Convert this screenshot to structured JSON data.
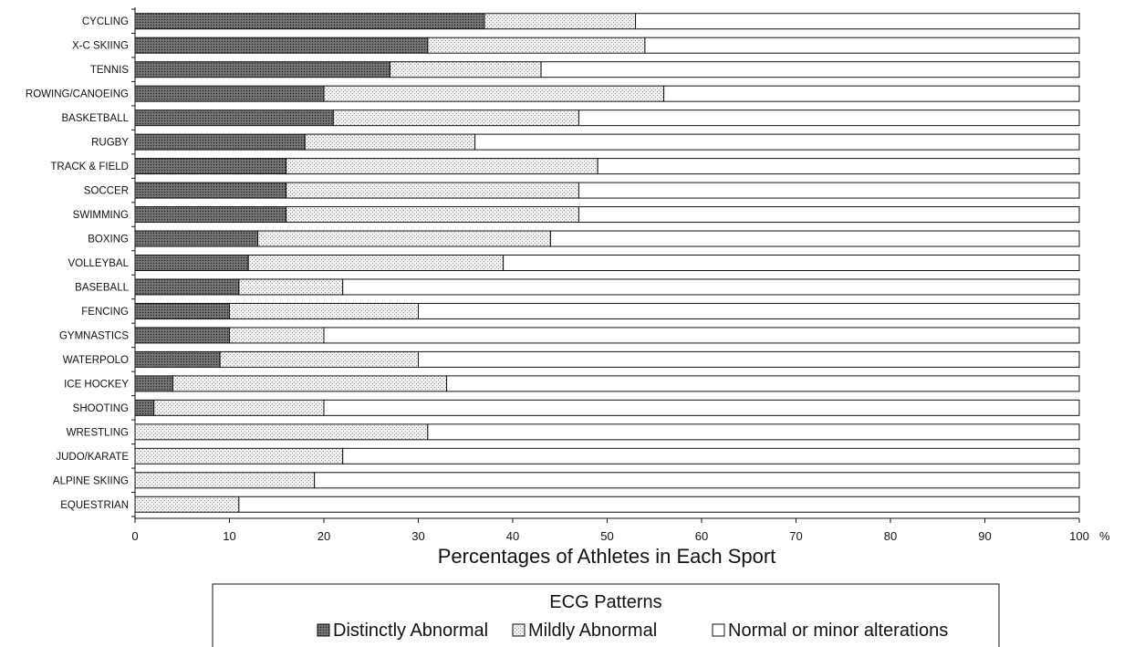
{
  "chart_data": {
    "type": "bar",
    "orientation": "horizontal",
    "stacked": true,
    "categories": [
      "CYCLING",
      "X-C SKIING",
      "TENNIS",
      "ROWING/CANOEING",
      "BASKETBALL",
      "RUGBY",
      "TRACK & FIELD",
      "SOCCER",
      "SWIMMING",
      "BOXING",
      "VOLLEYBAL",
      "BASEBALL",
      "FENCING",
      "GYMNASTICS",
      "WATERPOLO",
      "ICE HOCKEY",
      "SHOOTING",
      "WRESTLING",
      "JUDO/KARATE",
      "ALPINE SKIING",
      "EQUESTRIAN"
    ],
    "series": [
      {
        "name": "Distinctly Abnormal",
        "values": [
          37,
          31,
          27,
          20,
          21,
          18,
          16,
          16,
          16,
          13,
          12,
          11,
          10,
          10,
          9,
          4,
          2,
          0,
          0,
          0,
          0
        ],
        "color": "#555555",
        "pattern": "dense-dots"
      },
      {
        "name": "Mildly Abnormal",
        "values": [
          16,
          23,
          16,
          36,
          26,
          18,
          33,
          31,
          31,
          31,
          27,
          11,
          20,
          10,
          21,
          29,
          18,
          31,
          22,
          19,
          11
        ],
        "color": "#eeeeee",
        "pattern": "light-dots"
      },
      {
        "name": "Normal or minor alterations",
        "values": [
          47,
          46,
          57,
          44,
          53,
          64,
          51,
          53,
          53,
          56,
          61,
          78,
          70,
          80,
          70,
          67,
          80,
          69,
          78,
          81,
          89
        ],
        "color": "#ffffff",
        "pattern": "none"
      }
    ],
    "x_ticks": [
      "0",
      "10",
      "20",
      "30",
      "40",
      "50",
      "60",
      "70",
      "80",
      "90",
      "100"
    ],
    "x_unit": "%",
    "xlabel": "Percentages of Athletes in Each Sport",
    "xlim": [
      0,
      100
    ],
    "grid": false,
    "legend": {
      "title": "ECG Patterns",
      "placement": "bottom"
    }
  }
}
